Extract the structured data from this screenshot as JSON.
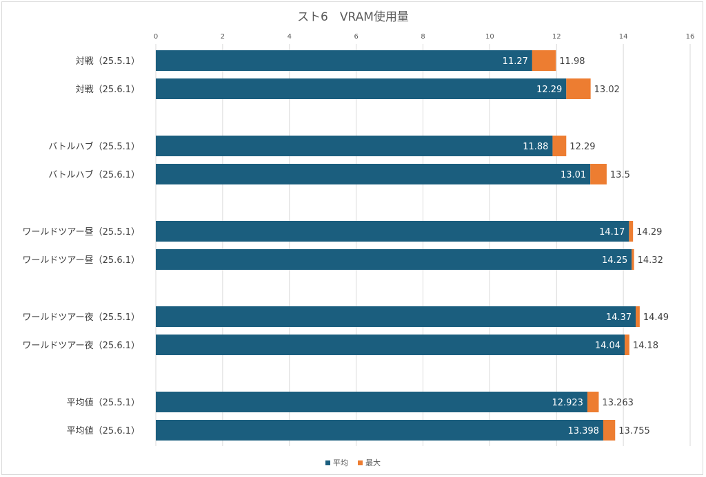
{
  "chart_data": {
    "type": "bar",
    "orientation": "horizontal",
    "stacked": true,
    "title": "スト6　VRAM使用量",
    "xlim": [
      0,
      16
    ],
    "xticks": [
      0,
      2,
      4,
      6,
      8,
      10,
      12,
      14,
      16
    ],
    "grid": true,
    "legend_position": "bottom",
    "colors": {
      "avg": "#1b5e7e",
      "max": "#ed7d31"
    },
    "categories": [
      "対戦（25.5.1）",
      "対戦（25.6.1）",
      "バトルハブ（25.5.1）",
      "バトルハブ（25.6.1）",
      "ワールドツアー昼（25.5.1）",
      "ワールドツアー昼（25.6.1）",
      "ワールドツアー夜（25.5.1）",
      "ワールドツアー夜（25.6.1）",
      "平均値（25.5.1）",
      "平均値（25.6.1）"
    ],
    "series": [
      {
        "name": "平均",
        "values": [
          "11.27",
          "12.29",
          "11.88",
          "13.01",
          "14.17",
          "14.25",
          "14.37",
          "14.04",
          "12.923",
          "13.398"
        ]
      },
      {
        "name": "最大",
        "values": [
          "11.98",
          "13.02",
          "12.29",
          "13.5",
          "14.29",
          "14.32",
          "14.49",
          "14.18",
          "13.263",
          "13.755"
        ]
      }
    ]
  }
}
